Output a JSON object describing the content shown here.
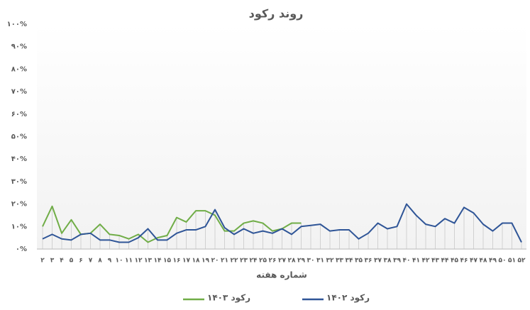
{
  "chart_data": {
    "type": "line",
    "title": "روند رکود",
    "x_label": "شماره هفته",
    "categories": [
      "۲",
      "۳",
      "۴",
      "۵",
      "۶",
      "۷",
      "۸",
      "۹",
      "۱۰",
      "۱۱",
      "۱۲",
      "۱۳",
      "۱۴",
      "۱۵",
      "۱۶",
      "۱۷",
      "۱۸",
      "۱۹",
      "۲۰",
      "۲۱",
      "۲۲",
      "۲۳",
      "۲۴",
      "۲۵",
      "۲۶",
      "۲۷",
      "۲۸",
      "۲۹",
      "۳۰",
      "۳۱",
      "۳۲",
      "۳۳",
      "۳۴",
      "۳۵",
      "۳۶",
      "۳۷",
      "۳۸",
      "۳۹",
      "۴۰",
      "۴۱",
      "۴۲",
      "۴۳",
      "۴۴",
      "۴۵",
      "۴۶",
      "۴۷",
      "۴۸",
      "۴۹",
      "۵۰",
      "۵۱",
      "۵۲"
    ],
    "series": [
      {
        "name": "رکود ۱۴۰۳",
        "color": "#70ad47",
        "values": [
          10,
          19,
          7,
          13,
          6.5,
          7,
          11,
          6.5,
          6,
          4.5,
          6.5,
          3,
          5,
          6,
          14,
          12,
          17,
          17,
          15,
          8,
          8,
          11.5,
          12.5,
          11.5,
          8,
          9,
          11.5,
          11.5,
          null,
          null,
          null,
          null,
          null,
          null,
          null,
          null,
          null,
          null,
          null,
          null,
          null,
          null,
          null,
          null,
          null,
          null,
          null,
          null,
          null,
          null,
          null
        ]
      },
      {
        "name": "رکود ۱۴۰۲",
        "color": "#2f5597",
        "values": [
          4.5,
          6.5,
          4.5,
          4,
          6.5,
          7,
          4,
          4,
          3,
          3,
          5,
          9,
          4,
          4,
          7,
          8.5,
          8.5,
          10,
          17.5,
          9.5,
          6.5,
          9,
          7,
          8,
          7,
          9,
          6.5,
          10,
          10.5,
          11,
          8,
          8.5,
          8.5,
          4.5,
          7,
          11.5,
          9,
          10,
          20,
          15,
          11,
          10,
          13.5,
          11.5,
          18.5,
          16,
          11,
          8,
          11.5,
          11.5,
          3
        ]
      }
    ],
    "ylim": [
      0,
      100
    ],
    "yticks": [
      {
        "value": 0,
        "label": "۰%"
      },
      {
        "value": 10,
        "label": "۱۰%"
      },
      {
        "value": 20,
        "label": "۲۰%"
      },
      {
        "value": 30,
        "label": "۳۰%"
      },
      {
        "value": 40,
        "label": "۴۰%"
      },
      {
        "value": 50,
        "label": "۵۰%"
      },
      {
        "value": 60,
        "label": "۶۰%"
      },
      {
        "value": 70,
        "label": "۷۰%"
      },
      {
        "value": 80,
        "label": "۸۰%"
      },
      {
        "value": 90,
        "label": "۹۰%"
      },
      {
        "value": 100,
        "label": "۱۰۰%"
      }
    ],
    "grid": false
  }
}
